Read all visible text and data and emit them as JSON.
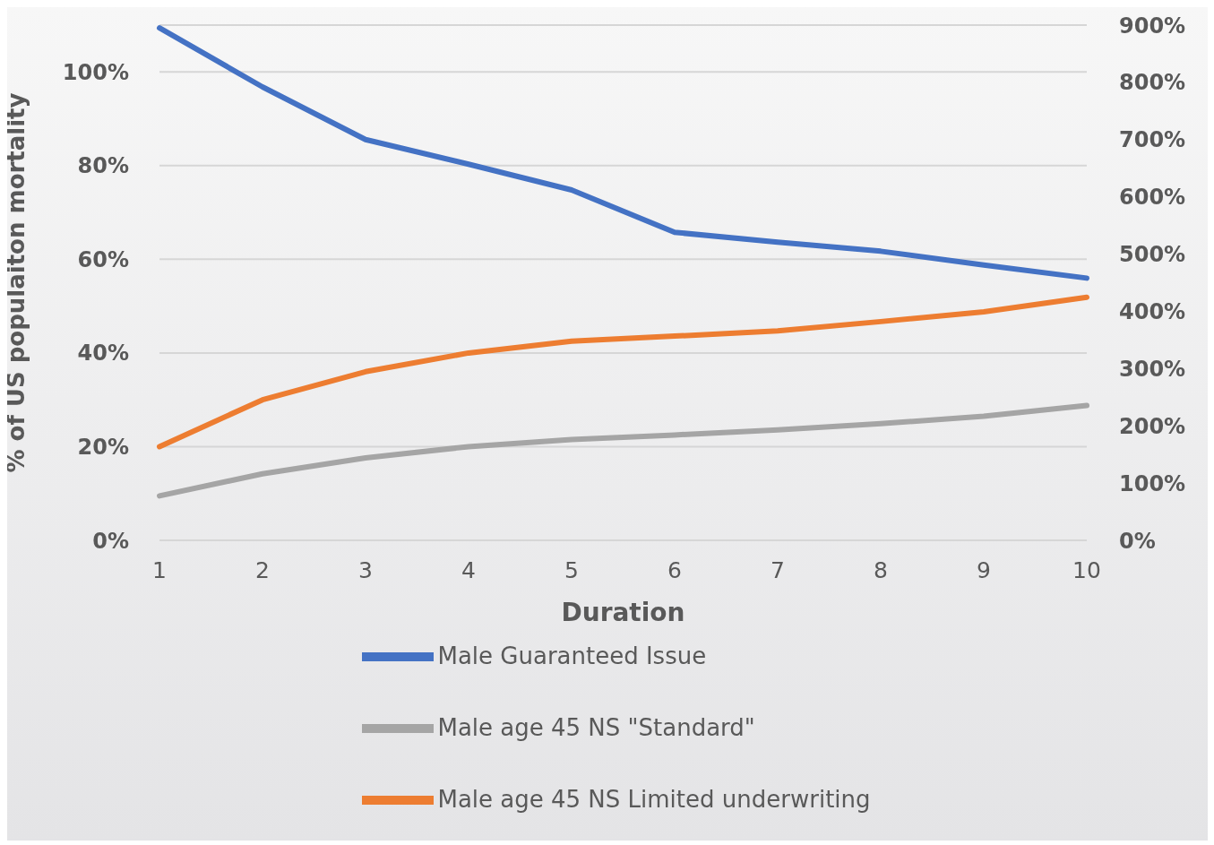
{
  "chart_data": {
    "type": "line",
    "xlabel": "Duration",
    "ylabel": "% of  US populaiton mortality",
    "categories": [
      "1",
      "2",
      "3",
      "4",
      "5",
      "6",
      "7",
      "8",
      "9",
      "10"
    ],
    "series": [
      {
        "name": "Male age 45 NS Limited underwriting",
        "color": "#ed7d31",
        "values": [
          20,
          30,
          36,
          40,
          42.5,
          43.6,
          44.7,
          46.7,
          48.8,
          51.9
        ]
      },
      {
        "name": "Male age 45 NS \"Standard\"",
        "color": "#a5a5a5",
        "values": [
          9.5,
          14.2,
          17.6,
          20,
          21.5,
          22.5,
          23.6,
          24.9,
          26.5,
          28.8
        ]
      },
      {
        "name": "Male Guaranteed Issue",
        "color": "#4472c4",
        "axis": "y2",
        "values": [
          895,
          792,
          700,
          657,
          612,
          538,
          521,
          505,
          481,
          458
        ]
      }
    ],
    "ylim": [
      0,
      110
    ],
    "yticks": [
      {
        "value": 0,
        "label": "0%"
      },
      {
        "value": 20,
        "label": "20%"
      },
      {
        "value": 40,
        "label": "40%"
      },
      {
        "value": 60,
        "label": "60%"
      },
      {
        "value": 80,
        "label": "80%"
      },
      {
        "value": 100,
        "label": "100%"
      }
    ],
    "y2lim": [
      0,
      900
    ],
    "y2ticks": [
      {
        "value": 0,
        "label": "0%"
      },
      {
        "value": 100,
        "label": "100%"
      },
      {
        "value": 200,
        "label": "200%"
      },
      {
        "value": 300,
        "label": "300%"
      },
      {
        "value": 400,
        "label": "400%"
      },
      {
        "value": 500,
        "label": "500%"
      },
      {
        "value": 600,
        "label": "600%"
      },
      {
        "value": 700,
        "label": "700%"
      },
      {
        "value": 800,
        "label": "800%"
      },
      {
        "value": 900,
        "label": "900%"
      }
    ],
    "grid": "y",
    "legend": "bottom"
  }
}
